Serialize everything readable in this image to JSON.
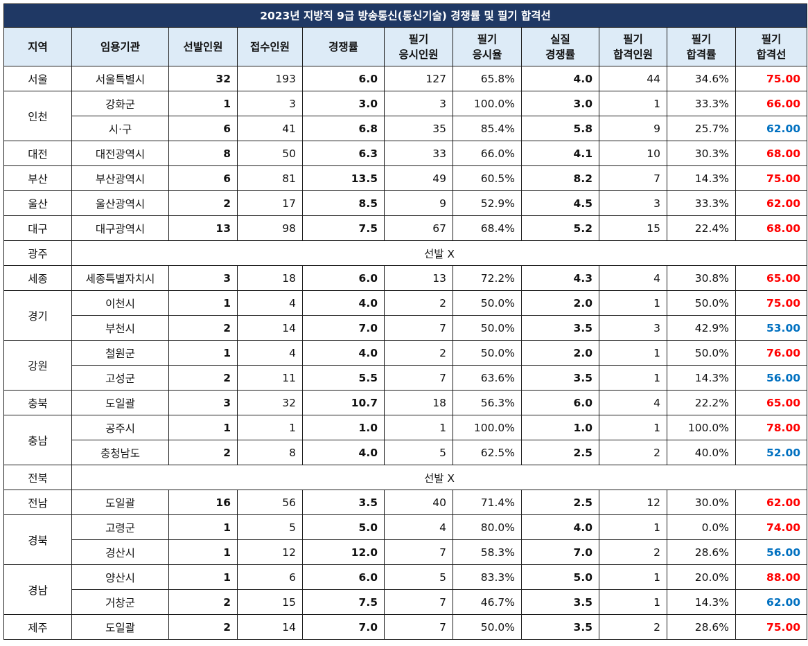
{
  "title": "2023년 지방직 9급 방송통신(통신기술) 경쟁률 및 필기 합격선",
  "headers": {
    "region": "지역",
    "institution": "임용기관",
    "selected": "선발인원",
    "applied": "접수인원",
    "competition": "경쟁률",
    "takers_line1": "필기",
    "takers_line2": "응시인원",
    "take_rate_line1": "필기",
    "take_rate_line2": "응시율",
    "real_comp_line1": "실질",
    "real_comp_line2": "경쟁률",
    "passers_line1": "필기",
    "passers_line2": "합격인원",
    "pass_rate_line1": "필기",
    "pass_rate_line2": "합격률",
    "cutoff_line1": "필기",
    "cutoff_line2": "합격선"
  },
  "colors": {
    "title_bg": "#1f3864",
    "header_bg": "#ddebf7",
    "red": "#ff0000",
    "blue": "#0070c0"
  },
  "regions": [
    {
      "region": "서울",
      "rows": [
        {
          "institution": "서울특별시",
          "selected": "32",
          "applied": "193",
          "competition": "6.0",
          "takers": "127",
          "take_rate": "65.8%",
          "real_comp": "4.0",
          "passers": "44",
          "pass_rate": "34.6%",
          "cutoff": "75.00",
          "cutoff_color": "red"
        }
      ]
    },
    {
      "region": "인천",
      "rows": [
        {
          "institution": "강화군",
          "selected": "1",
          "applied": "3",
          "competition": "3.0",
          "takers": "3",
          "take_rate": "100.0%",
          "real_comp": "3.0",
          "passers": "1",
          "pass_rate": "33.3%",
          "cutoff": "66.00",
          "cutoff_color": "red"
        },
        {
          "institution": "시·구",
          "selected": "6",
          "applied": "41",
          "competition": "6.8",
          "takers": "35",
          "take_rate": "85.4%",
          "real_comp": "5.8",
          "passers": "9",
          "pass_rate": "25.7%",
          "cutoff": "62.00",
          "cutoff_color": "blue"
        }
      ]
    },
    {
      "region": "대전",
      "rows": [
        {
          "institution": "대전광역시",
          "selected": "8",
          "applied": "50",
          "competition": "6.3",
          "takers": "33",
          "take_rate": "66.0%",
          "real_comp": "4.1",
          "passers": "10",
          "pass_rate": "30.3%",
          "cutoff": "68.00",
          "cutoff_color": "red"
        }
      ]
    },
    {
      "region": "부산",
      "rows": [
        {
          "institution": "부산광역시",
          "selected": "6",
          "applied": "81",
          "competition": "13.5",
          "takers": "49",
          "take_rate": "60.5%",
          "real_comp": "8.2",
          "passers": "7",
          "pass_rate": "14.3%",
          "cutoff": "75.00",
          "cutoff_color": "red"
        }
      ]
    },
    {
      "region": "울산",
      "rows": [
        {
          "institution": "울산광역시",
          "selected": "2",
          "applied": "17",
          "competition": "8.5",
          "takers": "9",
          "take_rate": "52.9%",
          "real_comp": "4.5",
          "passers": "3",
          "pass_rate": "33.3%",
          "cutoff": "62.00",
          "cutoff_color": "red"
        }
      ]
    },
    {
      "region": "대구",
      "rows": [
        {
          "institution": "대구광역시",
          "selected": "13",
          "applied": "98",
          "competition": "7.5",
          "takers": "67",
          "take_rate": "68.4%",
          "real_comp": "5.2",
          "passers": "15",
          "pass_rate": "22.4%",
          "cutoff": "68.00",
          "cutoff_color": "red"
        }
      ]
    },
    {
      "region": "광주",
      "no_selection": "선발 X"
    },
    {
      "region": "세종",
      "rows": [
        {
          "institution": "세종특별자치시",
          "selected": "3",
          "applied": "18",
          "competition": "6.0",
          "takers": "13",
          "take_rate": "72.2%",
          "real_comp": "4.3",
          "passers": "4",
          "pass_rate": "30.8%",
          "cutoff": "65.00",
          "cutoff_color": "red"
        }
      ]
    },
    {
      "region": "경기",
      "rows": [
        {
          "institution": "이천시",
          "selected": "1",
          "applied": "4",
          "competition": "4.0",
          "takers": "2",
          "take_rate": "50.0%",
          "real_comp": "2.0",
          "passers": "1",
          "pass_rate": "50.0%",
          "cutoff": "75.00",
          "cutoff_color": "red"
        },
        {
          "institution": "부천시",
          "selected": "2",
          "applied": "14",
          "competition": "7.0",
          "takers": "7",
          "take_rate": "50.0%",
          "real_comp": "3.5",
          "passers": "3",
          "pass_rate": "42.9%",
          "cutoff": "53.00",
          "cutoff_color": "blue"
        }
      ]
    },
    {
      "region": "강원",
      "rows": [
        {
          "institution": "철원군",
          "selected": "1",
          "applied": "4",
          "competition": "4.0",
          "takers": "2",
          "take_rate": "50.0%",
          "real_comp": "2.0",
          "passers": "1",
          "pass_rate": "50.0%",
          "cutoff": "76.00",
          "cutoff_color": "red"
        },
        {
          "institution": "고성군",
          "selected": "2",
          "applied": "11",
          "competition": "5.5",
          "takers": "7",
          "take_rate": "63.6%",
          "real_comp": "3.5",
          "passers": "1",
          "pass_rate": "14.3%",
          "cutoff": "56.00",
          "cutoff_color": "blue"
        }
      ]
    },
    {
      "region": "충북",
      "rows": [
        {
          "institution": "도일괄",
          "selected": "3",
          "applied": "32",
          "competition": "10.7",
          "takers": "18",
          "take_rate": "56.3%",
          "real_comp": "6.0",
          "passers": "4",
          "pass_rate": "22.2%",
          "cutoff": "65.00",
          "cutoff_color": "red"
        }
      ]
    },
    {
      "region": "충남",
      "rows": [
        {
          "institution": "공주시",
          "selected": "1",
          "applied": "1",
          "competition": "1.0",
          "takers": "1",
          "take_rate": "100.0%",
          "real_comp": "1.0",
          "passers": "1",
          "pass_rate": "100.0%",
          "cutoff": "78.00",
          "cutoff_color": "red"
        },
        {
          "institution": "충청남도",
          "selected": "2",
          "applied": "8",
          "competition": "4.0",
          "takers": "5",
          "take_rate": "62.5%",
          "real_comp": "2.5",
          "passers": "2",
          "pass_rate": "40.0%",
          "cutoff": "52.00",
          "cutoff_color": "blue"
        }
      ]
    },
    {
      "region": "전북",
      "no_selection": "선발 X"
    },
    {
      "region": "전남",
      "rows": [
        {
          "institution": "도일괄",
          "selected": "16",
          "applied": "56",
          "competition": "3.5",
          "takers": "40",
          "take_rate": "71.4%",
          "real_comp": "2.5",
          "passers": "12",
          "pass_rate": "30.0%",
          "cutoff": "62.00",
          "cutoff_color": "red"
        }
      ]
    },
    {
      "region": "경북",
      "rows": [
        {
          "institution": "고령군",
          "selected": "1",
          "applied": "5",
          "competition": "5.0",
          "takers": "4",
          "take_rate": "80.0%",
          "real_comp": "4.0",
          "passers": "1",
          "pass_rate": "0.0%",
          "cutoff": "74.00",
          "cutoff_color": "red"
        },
        {
          "institution": "경산시",
          "selected": "1",
          "applied": "12",
          "competition": "12.0",
          "takers": "7",
          "take_rate": "58.3%",
          "real_comp": "7.0",
          "passers": "2",
          "pass_rate": "28.6%",
          "cutoff": "56.00",
          "cutoff_color": "blue"
        }
      ]
    },
    {
      "region": "경남",
      "rows": [
        {
          "institution": "양산시",
          "selected": "1",
          "applied": "6",
          "competition": "6.0",
          "takers": "5",
          "take_rate": "83.3%",
          "real_comp": "5.0",
          "passers": "1",
          "pass_rate": "20.0%",
          "cutoff": "88.00",
          "cutoff_color": "red"
        },
        {
          "institution": "거창군",
          "selected": "2",
          "applied": "15",
          "competition": "7.5",
          "takers": "7",
          "take_rate": "46.7%",
          "real_comp": "3.5",
          "passers": "1",
          "pass_rate": "14.3%",
          "cutoff": "62.00",
          "cutoff_color": "blue"
        }
      ]
    },
    {
      "region": "제주",
      "rows": [
        {
          "institution": "도일괄",
          "selected": "2",
          "applied": "14",
          "competition": "7.0",
          "takers": "7",
          "take_rate": "50.0%",
          "real_comp": "3.5",
          "passers": "2",
          "pass_rate": "28.6%",
          "cutoff": "75.00",
          "cutoff_color": "red"
        }
      ]
    }
  ]
}
